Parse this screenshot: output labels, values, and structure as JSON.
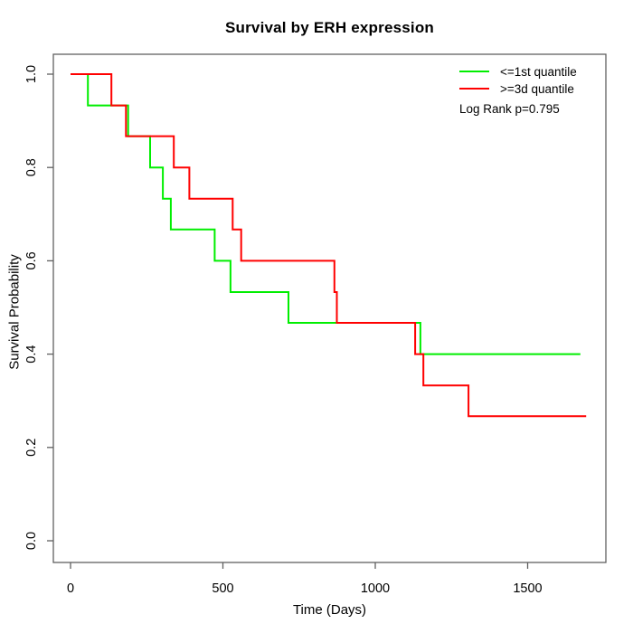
{
  "title": "Survival by ERH expression",
  "x_axis": {
    "label": "Time (Days)",
    "ticks": [
      "0",
      "500",
      "1000",
      "1500"
    ],
    "tick_values": [
      0,
      500,
      1000,
      1500
    ]
  },
  "y_axis": {
    "label": "Survival Probability",
    "ticks": [
      "0.0",
      "0.2",
      "0.4",
      "0.6",
      "0.8",
      "1.0"
    ],
    "tick_values": [
      0,
      0.2,
      0.4,
      0.6,
      0.8,
      1.0
    ]
  },
  "legend": {
    "items": [
      {
        "label": "<=1st quantile",
        "color": "#00ee00"
      },
      {
        "label": ">=3d quantile",
        "color": "#ff0000"
      }
    ],
    "note": "Log Rank p=0.795"
  },
  "chart_data": {
    "type": "line",
    "subtype": "kaplan-meier-step",
    "title": "Survival by ERH expression",
    "xlabel": "Time (Days)",
    "ylabel": "Survival Probability",
    "xlim": [
      0,
      1760
    ],
    "ylim": [
      0.0,
      1.0
    ],
    "grid": false,
    "legend_position": "top-right",
    "annotation": "Log Rank p=0.795",
    "series": [
      {
        "name": "<=1st quantile",
        "color": "#00ee00",
        "points": [
          {
            "t": 0,
            "s": 1.0
          },
          {
            "t": 57,
            "s": 0.933
          },
          {
            "t": 189,
            "s": 0.867
          },
          {
            "t": 261,
            "s": 0.8
          },
          {
            "t": 303,
            "s": 0.733
          },
          {
            "t": 329,
            "s": 0.667
          },
          {
            "t": 473,
            "s": 0.6
          },
          {
            "t": 525,
            "s": 0.533
          },
          {
            "t": 715,
            "s": 0.467
          },
          {
            "t": 1148,
            "s": 0.4
          }
        ],
        "end_time": 1673
      },
      {
        "name": ">=3d quantile",
        "color": "#ff0000",
        "points": [
          {
            "t": 0,
            "s": 1.0
          },
          {
            "t": 134,
            "s": 0.933
          },
          {
            "t": 182,
            "s": 0.867
          },
          {
            "t": 339,
            "s": 0.8
          },
          {
            "t": 390,
            "s": 0.733
          },
          {
            "t": 532,
            "s": 0.667
          },
          {
            "t": 560,
            "s": 0.6
          },
          {
            "t": 866,
            "s": 0.533
          },
          {
            "t": 874,
            "s": 0.467
          },
          {
            "t": 1131,
            "s": 0.4
          },
          {
            "t": 1158,
            "s": 0.333
          },
          {
            "t": 1306,
            "s": 0.267
          }
        ],
        "end_time": 1692
      }
    ]
  }
}
